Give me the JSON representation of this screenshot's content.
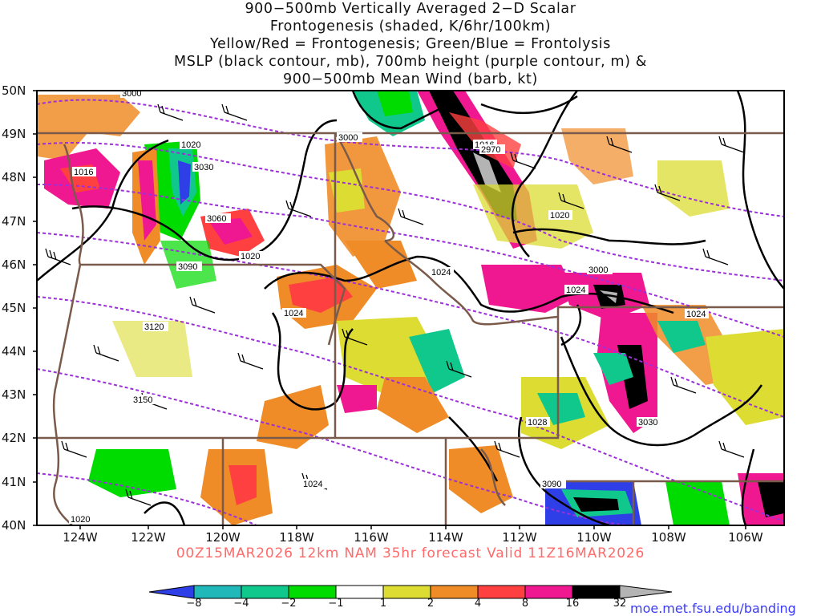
{
  "title_lines": [
    "900−500mb Vertically Averaged 2−D Scalar",
    "Frontogenesis (shaded, K/6hr/100km)",
    "Yellow/Red = Frontogenesis;  Green/Blue = Frontolysis",
    "MSLP (black contour, mb), 700mb height (purple contour, m) &",
    "900−500mb Mean Wind (barb, kt)"
  ],
  "subtitle": "00Z15MAR2026 12km NAM 35hr forecast Valid 11Z16MAR2026",
  "credit": "moe.met.fsu.edu/banding",
  "lat_labels": [
    "50N",
    "49N",
    "48N",
    "47N",
    "46N",
    "45N",
    "44N",
    "43N",
    "42N",
    "41N",
    "40N"
  ],
  "lon_labels": [
    "124W",
    "122W",
    "120W",
    "118W",
    "116W",
    "114W",
    "112W",
    "110W",
    "108W",
    "106W"
  ],
  "colorbar": {
    "labels": [
      "−8",
      "−4",
      "−2",
      "−1",
      "1",
      "2",
      "4",
      "8",
      "16",
      "32"
    ],
    "colors": [
      "#2f3fe8",
      "#20b8b8",
      "#10c88c",
      "#00dc00",
      "#ffffff",
      "#dcdc32",
      "#f08c28",
      "#ff4040",
      "#f01890",
      "#000000",
      "#b4b4b4"
    ]
  },
  "pressure_labels": [
    "1016",
    "1016",
    "1020",
    "1020",
    "1020",
    "1024",
    "1024",
    "1024",
    "1024",
    "1024",
    "1028",
    "1020"
  ],
  "height_labels": [
    "3000",
    "3000",
    "3030",
    "3060",
    "3090",
    "3120",
    "3150",
    "3000",
    "2970",
    "3030",
    "3090"
  ]
}
